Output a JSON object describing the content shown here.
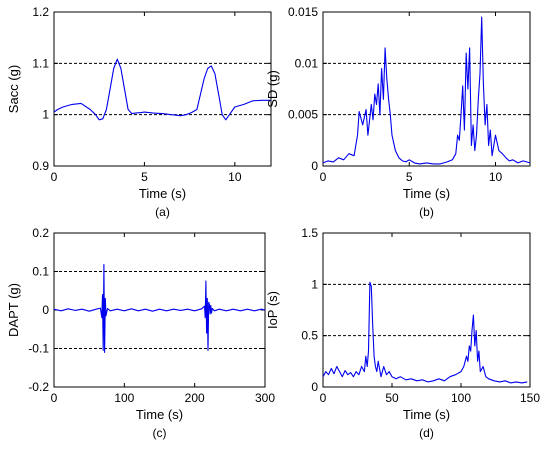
{
  "chart_data": [
    {
      "id": "a",
      "type": "line",
      "caption": "(a)",
      "xlabel": "Time (s)",
      "ylabel": "Sacc (g)",
      "xlim": [
        0,
        12
      ],
      "ylim": [
        0.9,
        1.2
      ],
      "xticks": [
        0,
        5,
        10
      ],
      "yticks": [
        0.9,
        1,
        1.1,
        1.2
      ],
      "ytick_labels": [
        "0.9",
        "1",
        "1.1",
        "1.2"
      ],
      "reference_lines": [
        1.0,
        1.1
      ],
      "series": [
        {
          "x": [
            0,
            0.2,
            0.5,
            1.0,
            1.5,
            2.0,
            2.3,
            2.5,
            2.7,
            2.9,
            3.1,
            3.3,
            3.5,
            3.7,
            3.9,
            4.1,
            4.3,
            4.5,
            4.8,
            5.0,
            5.5,
            6.0,
            6.5,
            7.0,
            7.3,
            7.6,
            7.9,
            8.1,
            8.3,
            8.5,
            8.7,
            8.9,
            9.1,
            9.3,
            9.5,
            9.7,
            10.0,
            10.5,
            11.0,
            11.5,
            12.0
          ],
          "y": [
            1.005,
            1.01,
            1.015,
            1.02,
            1.022,
            1.01,
            1.0,
            0.99,
            0.992,
            1.01,
            1.05,
            1.09,
            1.108,
            1.09,
            1.05,
            1.01,
            1.002,
            1.003,
            1.004,
            1.005,
            1.003,
            1.002,
            1.0,
            0.998,
            1.0,
            1.004,
            1.01,
            1.04,
            1.07,
            1.09,
            1.095,
            1.08,
            1.04,
            1.0,
            0.99,
            1.0,
            1.015,
            1.02,
            1.027,
            1.028,
            1.028
          ]
        }
      ]
    },
    {
      "id": "b",
      "type": "line",
      "caption": "(b)",
      "xlabel": "Time (s)",
      "ylabel": "SD (g)",
      "xlim": [
        0,
        12
      ],
      "ylim": [
        0,
        0.015
      ],
      "xticks": [
        0,
        5,
        10
      ],
      "yticks": [
        0,
        0.005,
        0.01,
        0.015
      ],
      "ytick_labels": [
        "0",
        "0.005",
        "0.01",
        "0.015"
      ],
      "reference_lines": [
        0.005,
        0.01
      ],
      "series": [
        {
          "x": [
            0,
            0.3,
            0.6,
            0.9,
            1.2,
            1.5,
            1.8,
            2.0,
            2.1,
            2.3,
            2.5,
            2.6,
            2.8,
            2.9,
            3.0,
            3.1,
            3.2,
            3.3,
            3.4,
            3.5,
            3.6,
            3.7,
            3.8,
            3.9,
            4.0,
            4.2,
            4.4,
            4.6,
            4.8,
            5.0,
            5.3,
            5.6,
            6.0,
            6.4,
            6.8,
            7.2,
            7.5,
            7.7,
            7.8,
            7.9,
            8.0,
            8.1,
            8.2,
            8.3,
            8.4,
            8.5,
            8.6,
            8.7,
            8.8,
            8.9,
            9.0,
            9.1,
            9.2,
            9.3,
            9.4,
            9.5,
            9.6,
            9.7,
            9.8,
            9.9,
            10.0,
            10.2,
            10.4,
            10.6,
            10.8,
            11.0,
            11.3,
            11.6,
            12.0
          ],
          "y": [
            0.0003,
            0.0005,
            0.0004,
            0.0008,
            0.0006,
            0.0012,
            0.001,
            0.003,
            0.0053,
            0.004,
            0.0055,
            0.003,
            0.006,
            0.0045,
            0.007,
            0.006,
            0.008,
            0.005,
            0.0095,
            0.0065,
            0.0115,
            0.0085,
            0.0065,
            0.005,
            0.003,
            0.0015,
            0.0008,
            0.0005,
            0.0004,
            0.0006,
            0.0003,
            0.0002,
            0.0003,
            0.0002,
            0.0002,
            0.0004,
            0.0006,
            0.0012,
            0.003,
            0.0025,
            0.005,
            0.0078,
            0.0035,
            0.011,
            0.0075,
            0.0115,
            0.002,
            0.004,
            0.0015,
            0.003,
            0.0065,
            0.009,
            0.0145,
            0.008,
            0.004,
            0.006,
            0.002,
            0.0035,
            0.001,
            0.002,
            0.003,
            0.0015,
            0.0012,
            0.0008,
            0.0005,
            0.0006,
            0.0003,
            0.0005,
            0.0003
          ]
        }
      ]
    },
    {
      "id": "c",
      "type": "line",
      "caption": "(c)",
      "xlabel": "Time (s)",
      "ylabel": "DAPT (g)",
      "xlim": [
        0,
        300
      ],
      "ylim": [
        -0.2,
        0.2
      ],
      "xticks": [
        0,
        100,
        200,
        300
      ],
      "yticks": [
        -0.2,
        -0.1,
        0,
        0.1,
        0.2
      ],
      "ytick_labels": [
        "-0.2",
        "-0.1",
        "0",
        "0.1",
        "0.2"
      ],
      "reference_lines": [
        -0.1,
        0.1
      ],
      "series": [
        {
          "x": [
            0,
            10,
            20,
            30,
            40,
            50,
            60,
            66,
            68,
            69,
            70,
            71,
            72,
            73,
            74,
            76,
            80,
            90,
            100,
            110,
            120,
            130,
            140,
            150,
            160,
            170,
            180,
            190,
            200,
            210,
            214,
            215,
            216,
            217,
            218,
            219,
            220,
            221,
            222,
            223,
            224,
            225,
            228,
            235,
            245,
            255,
            265,
            275,
            285,
            295,
            300
          ],
          "y": [
            0.002,
            -0.002,
            0.003,
            -0.001,
            0.002,
            -0.003,
            0.002,
            0.005,
            -0.02,
            0.04,
            -0.105,
            0.118,
            -0.11,
            0.03,
            -0.015,
            0.004,
            -0.002,
            0.002,
            -0.002,
            0.003,
            -0.002,
            0.002,
            -0.003,
            0.002,
            -0.002,
            0.002,
            -0.001,
            0.002,
            -0.002,
            0.003,
            0.01,
            -0.02,
            0.075,
            -0.06,
            0.03,
            -0.105,
            0.02,
            0.015,
            -0.01,
            0.012,
            -0.008,
            0.004,
            -0.002,
            0.002,
            -0.002,
            0.002,
            -0.002,
            0.002,
            -0.002,
            0.002,
            0.0
          ]
        }
      ]
    },
    {
      "id": "d",
      "type": "line",
      "caption": "(d)",
      "xlabel": "Time (s)",
      "ylabel": "IoP (s)",
      "xlim": [
        0,
        150
      ],
      "ylim": [
        0,
        1.5
      ],
      "xticks": [
        0,
        50,
        100,
        150
      ],
      "yticks": [
        0,
        0.5,
        1,
        1.5
      ],
      "ytick_labels": [
        "0",
        "0.5",
        "1",
        "1.5"
      ],
      "reference_lines": [
        0.5,
        1.0
      ],
      "series": [
        {
          "x": [
            0,
            2,
            4,
            6,
            8,
            10,
            12,
            14,
            16,
            18,
            20,
            22,
            24,
            26,
            28,
            30,
            31,
            32,
            33,
            34,
            35,
            36,
            37,
            38,
            39,
            40,
            42,
            44,
            46,
            48,
            50,
            53,
            56,
            60,
            64,
            68,
            72,
            76,
            80,
            84,
            88,
            92,
            96,
            100,
            102,
            104,
            105,
            106,
            107,
            108,
            109,
            110,
            111,
            112,
            113,
            114,
            116,
            118,
            120,
            124,
            128,
            132,
            136,
            140,
            144,
            148
          ],
          "y": [
            0.1,
            0.15,
            0.12,
            0.18,
            0.13,
            0.2,
            0.15,
            0.1,
            0.16,
            0.12,
            0.14,
            0.1,
            0.15,
            0.12,
            0.2,
            0.15,
            0.3,
            0.2,
            0.35,
            1.02,
            0.98,
            0.6,
            0.3,
            0.2,
            0.15,
            0.25,
            0.1,
            0.2,
            0.12,
            0.15,
            0.1,
            0.08,
            0.1,
            0.07,
            0.08,
            0.06,
            0.07,
            0.05,
            0.06,
            0.08,
            0.06,
            0.1,
            0.12,
            0.15,
            0.2,
            0.3,
            0.25,
            0.4,
            0.35,
            0.55,
            0.7,
            0.4,
            0.55,
            0.25,
            0.35,
            0.15,
            0.2,
            0.1,
            0.08,
            0.06,
            0.05,
            0.06,
            0.04,
            0.05,
            0.04,
            0.05
          ]
        }
      ]
    }
  ]
}
